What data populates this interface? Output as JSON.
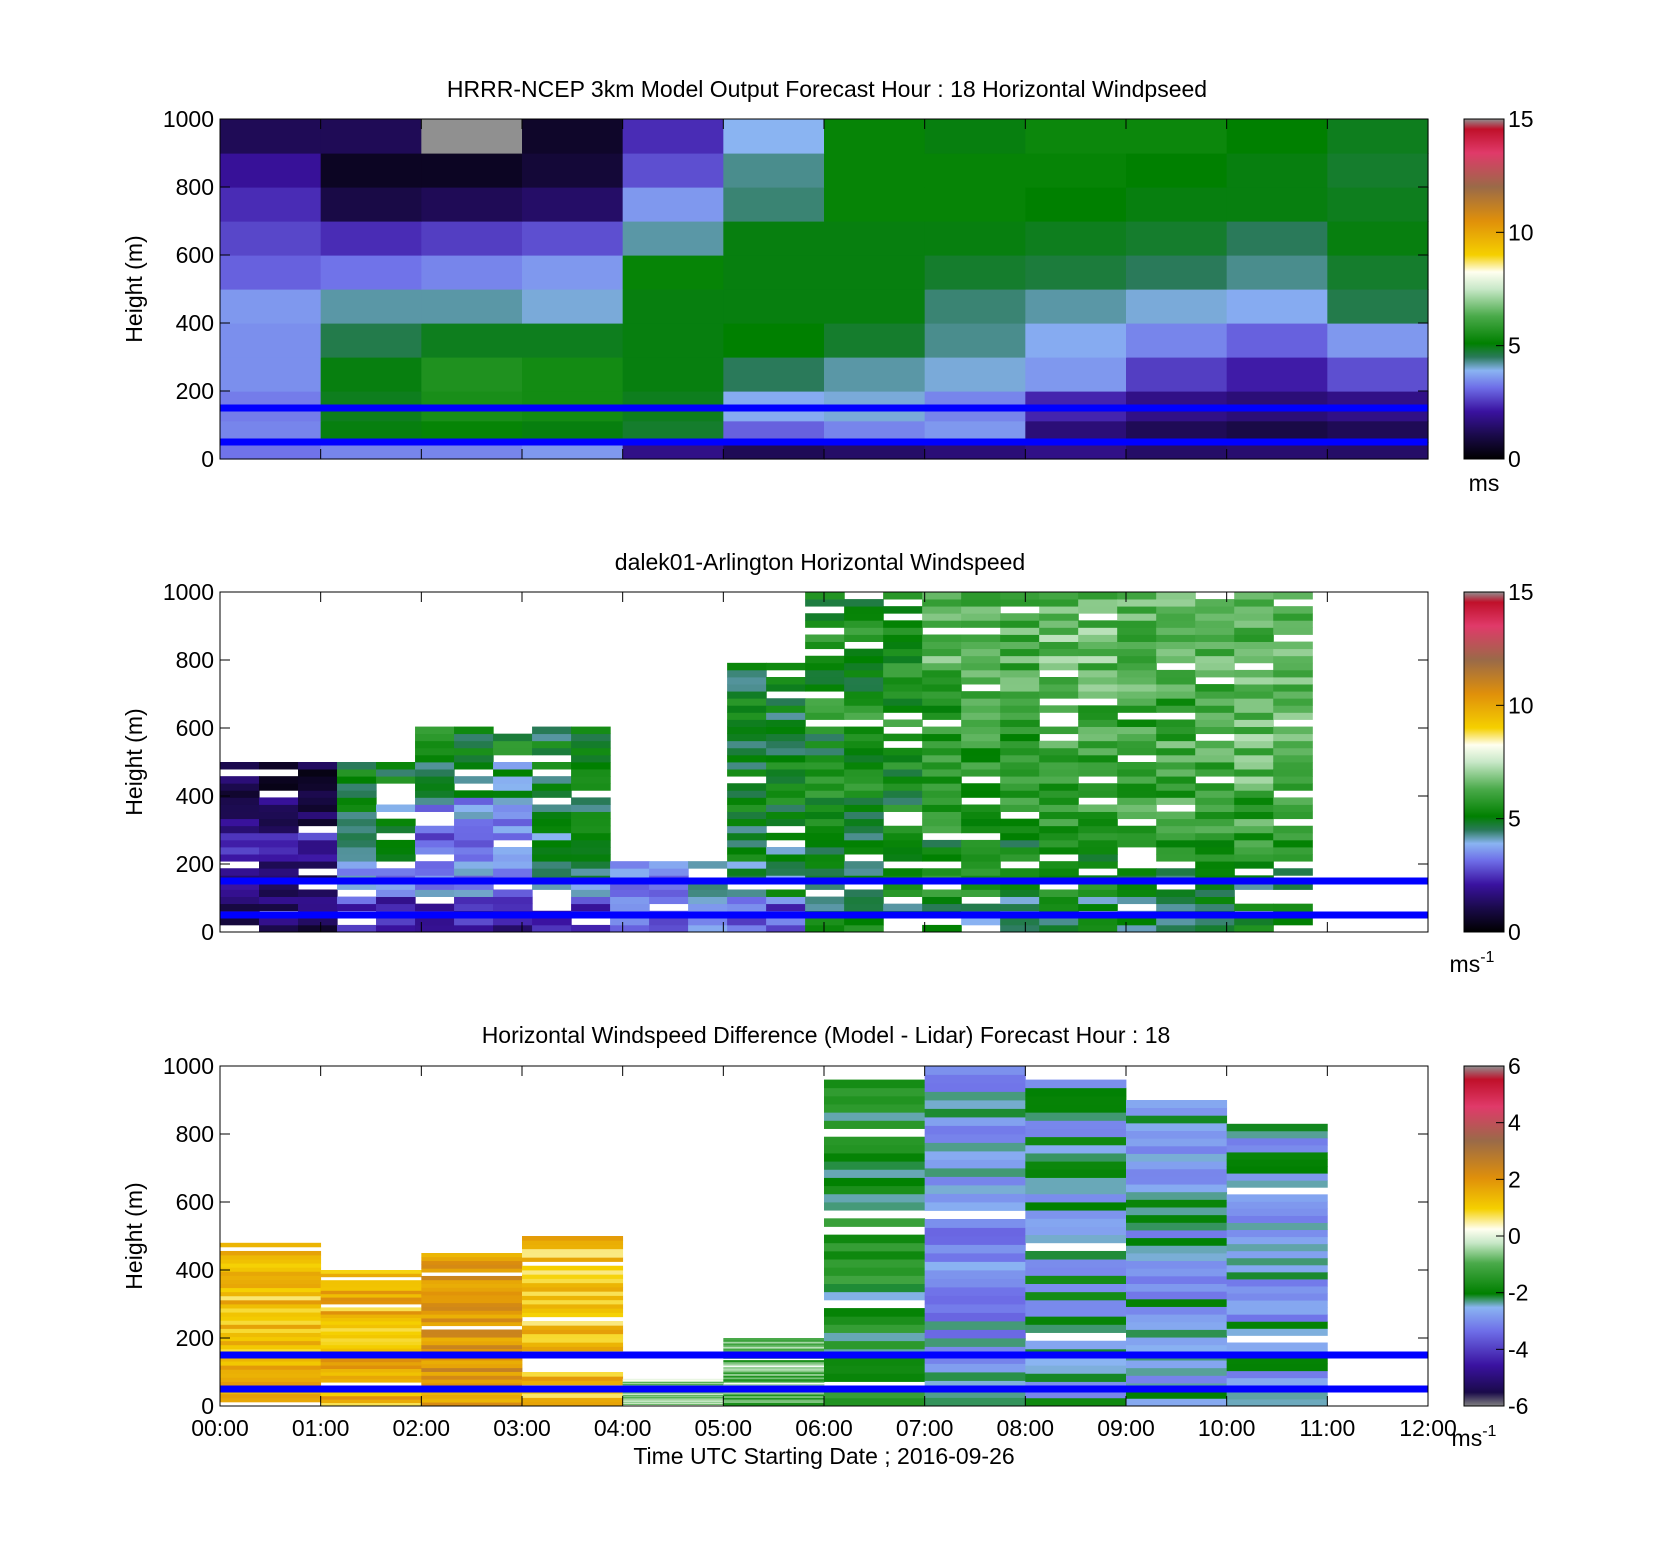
{
  "figure": {
    "x_tick_labels": [
      "00:00",
      "01:00",
      "02:00",
      "03:00",
      "04:00",
      "05:00",
      "06:00",
      "07:00",
      "08:00",
      "09:00",
      "10:00",
      "11:00",
      "12:00"
    ],
    "x_label": "Time UTC  Starting Date ; 2016-09-26",
    "reference_line_color": "#0000ff"
  },
  "chart_data": [
    {
      "type": "heatmap",
      "title": "HRRR-NCEP 3km Model Output   Forecast Hour : 18 Horizontal Windpseed",
      "ylabel": "Height (m)",
      "xlim": [
        0,
        12
      ],
      "ylim": [
        0,
        1000
      ],
      "y_ticks": [
        0,
        200,
        400,
        600,
        800,
        1000
      ],
      "colorbar": {
        "min": 0,
        "max": 15,
        "ticks": [
          0,
          5,
          10,
          15
        ],
        "unit": "ms",
        "unit_sup": ""
      },
      "reference_lines_m": [
        150,
        50
      ],
      "x_hours": [
        0,
        1,
        2,
        3,
        4,
        5,
        6,
        7,
        8,
        9,
        10,
        11
      ],
      "heights_m": [
        25,
        75,
        150,
        250,
        350,
        450,
        550,
        650,
        750,
        850,
        950
      ],
      "values": [
        [
          3.2,
          3.4,
          3.4,
          3.6,
          1.8,
          1.2,
          1.4,
          1.6,
          1.8,
          1.4,
          1.5,
          1.4
        ],
        [
          3.4,
          5.0,
          5.2,
          5.0,
          4.8,
          3.0,
          3.4,
          3.6,
          1.6,
          1.2,
          1.0,
          1.2
        ],
        [
          3.3,
          4.9,
          5.5,
          5.4,
          4.9,
          3.8,
          4.0,
          3.4,
          2.3,
          1.8,
          1.6,
          1.8
        ],
        [
          3.5,
          5.0,
          5.6,
          5.4,
          5.0,
          4.5,
          4.2,
          4.0,
          3.6,
          2.6,
          2.2,
          2.8
        ],
        [
          3.5,
          4.6,
          4.9,
          4.9,
          5.0,
          5.1,
          4.8,
          4.3,
          3.8,
          3.4,
          3.0,
          3.6
        ],
        [
          3.6,
          4.2,
          4.2,
          4.0,
          5.0,
          5.0,
          5.0,
          4.4,
          4.2,
          4.0,
          3.8,
          4.6
        ],
        [
          3.0,
          3.2,
          3.4,
          3.6,
          5.2,
          5.0,
          5.0,
          4.8,
          4.7,
          4.5,
          4.3,
          4.8
        ],
        [
          2.7,
          2.4,
          2.6,
          2.8,
          4.2,
          5.0,
          5.0,
          5.0,
          4.9,
          4.8,
          4.5,
          5.0
        ],
        [
          2.4,
          1.0,
          1.2,
          1.4,
          3.6,
          4.4,
          5.2,
          5.2,
          5.1,
          5.0,
          5.0,
          4.9
        ],
        [
          2.0,
          0.5,
          0.5,
          0.8,
          2.8,
          4.3,
          5.2,
          5.2,
          5.2,
          5.1,
          5.0,
          4.8
        ],
        [
          1.2,
          1.2,
          15.0,
          0.6,
          2.4,
          3.9,
          5.2,
          5.0,
          5.3,
          5.3,
          5.1,
          4.9
        ]
      ]
    },
    {
      "type": "heatmap",
      "title": "dalek01-Arlington  Horizontal Windspeed",
      "ylabel": "Height (m)",
      "xlim": [
        0,
        12
      ],
      "ylim": [
        0,
        1000
      ],
      "y_ticks": [
        0,
        200,
        400,
        600,
        800,
        1000
      ],
      "colorbar": {
        "min": 0,
        "max": 15,
        "ticks": [
          0,
          5,
          10,
          15
        ],
        "unit": "ms",
        "unit_sup": "-1"
      },
      "reference_lines_m": [
        150,
        50
      ],
      "data_span_hours": [
        0,
        10.85
      ],
      "heights_m": [
        50,
        150,
        250,
        350,
        450,
        550,
        650,
        750,
        850,
        950
      ],
      "column_hours": [
        0.5,
        1.5,
        2.5,
        3.5,
        4.5,
        5.5,
        6.5,
        7.5,
        8.5,
        9.5,
        10.5
      ],
      "values": [
        [
          1.2,
          2.6,
          2.0,
          2.4,
          3.4,
          3.0,
          5.0,
          4.6,
          4.8,
          4.6,
          4.9
        ],
        [
          1.6,
          3.4,
          3.6,
          4.2,
          3.6,
          4.6,
          5.0,
          5.4,
          5.2,
          5.0,
          5.0
        ],
        [
          2.2,
          4.4,
          3.2,
          4.6,
          null,
          4.8,
          5.0,
          5.2,
          5.4,
          5.6,
          5.6
        ],
        [
          1.4,
          4.6,
          3.6,
          5.0,
          null,
          5.0,
          5.2,
          5.6,
          5.8,
          6.0,
          6.0
        ],
        [
          1.0,
          5.0,
          4.4,
          5.0,
          null,
          5.0,
          5.4,
          5.8,
          5.6,
          5.8,
          6.4
        ],
        [
          null,
          null,
          5.2,
          5.0,
          null,
          5.0,
          5.2,
          5.8,
          6.0,
          6.2,
          6.6
        ],
        [
          null,
          null,
          null,
          null,
          null,
          5.0,
          5.6,
          5.8,
          6.2,
          6.0,
          6.6
        ],
        [
          null,
          null,
          null,
          null,
          null,
          5.0,
          5.4,
          6.2,
          6.4,
          6.2,
          6.4
        ],
        [
          null,
          null,
          null,
          null,
          null,
          null,
          5.6,
          6.4,
          6.6,
          6.4,
          6.4
        ],
        [
          null,
          null,
          null,
          null,
          null,
          null,
          5.4,
          6.2,
          6.6,
          6.4,
          6.2
        ]
      ]
    },
    {
      "type": "heatmap",
      "title": "Horizontal Windspeed Difference (Model - Lidar) Forecast Hour : 18",
      "ylabel": "Height (m)",
      "xlabel": "Time UTC  Starting Date ; 2016-09-26",
      "xlim": [
        0,
        12
      ],
      "ylim": [
        0,
        1000
      ],
      "y_ticks": [
        0,
        200,
        400,
        600,
        800,
        1000
      ],
      "colorbar": {
        "min": -6,
        "max": 6,
        "ticks": [
          -6,
          -4,
          -2,
          0,
          2,
          4,
          6
        ],
        "unit": "ms",
        "unit_sup": "-1"
      },
      "reference_lines_m": [
        150,
        50
      ],
      "columns": [
        {
          "hour": 0,
          "top_m": 480,
          "value": 1.2
        },
        {
          "hour": 1,
          "top_m": 400,
          "value": 1.4
        },
        {
          "hour": 2,
          "top_m": 450,
          "value": 2.0
        },
        {
          "hour": 3,
          "top_m": 500,
          "value": 1.2
        },
        {
          "hour": 4,
          "top_m": 80,
          "value": -0.4
        },
        {
          "hour": 5,
          "top_m": 200,
          "value": -1.0
        },
        {
          "hour": 6,
          "top_m": 960,
          "value": -1.8
        },
        {
          "hour": 7,
          "top_m": 1000,
          "value": -2.8
        },
        {
          "hour": 8,
          "top_m": 960,
          "value": -2.4
        },
        {
          "hour": 9,
          "top_m": 900,
          "value": -2.6
        },
        {
          "hour": 10,
          "top_m": 830,
          "value": -2.6
        }
      ]
    }
  ]
}
